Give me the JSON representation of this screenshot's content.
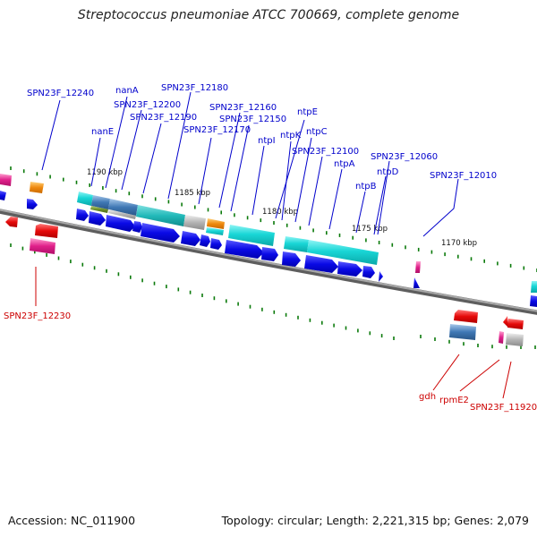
{
  "title": "Streptococcus pneumoniae ATCC 700669, complete genome",
  "footer": {
    "accession": "Accession: NC_011900",
    "summary": "Topology: circular; Length: 2,221,315 bp; Genes: 2,079"
  },
  "colors": {
    "forward_label": "#0000cc",
    "reverse_label": "#cc0000",
    "backbone": "#7f7f7f",
    "tick": "#0b7a0b",
    "cds_forward": "#0a0ae6",
    "cds_reverse": "#e60a0a",
    "feature_cyan": "#1ed2d2",
    "feature_orange": "#ef8a10",
    "feature_magenta": "#e0208a",
    "feature_gray": "#b4b4b4",
    "feature_steel": "#3f78b5"
  },
  "ruler": [
    {
      "label": "1190 kbp"
    },
    {
      "label": "1185 kbp"
    },
    {
      "label": "1180 kbp"
    },
    {
      "label": "1175 kbp"
    },
    {
      "label": "1170 kbp"
    }
  ],
  "forward_labels": [
    "SPN23F_12240",
    "nanA",
    "SPN23F_12180",
    "SPN23F_12200",
    "SPN23F_12190",
    "nanE",
    "SPN23F_12160",
    "SPN23F_12150",
    "SPN23F_12170",
    "ntpE",
    "ntpK",
    "ntpI",
    "ntpC",
    "SPN23F_12100",
    "ntpA",
    "SPN23F_12060",
    "ntpD",
    "ntpB",
    "SPN23F_12010"
  ],
  "reverse_labels": [
    "SPN23F_12230",
    "gdh",
    "rpmE2",
    "SPN23F_11920"
  ]
}
